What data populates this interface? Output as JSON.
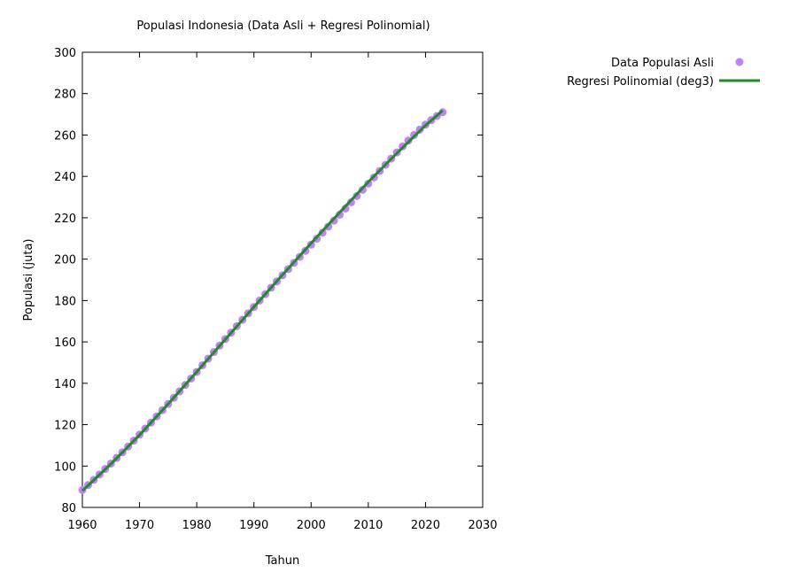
{
  "chart_data": {
    "type": "scatter",
    "title": "Populasi Indonesia (Data Asli + Regresi Polinomial)",
    "xlabel": "Tahun",
    "ylabel": "Populasi (juta)",
    "xlim": [
      1960,
      2030
    ],
    "ylim": [
      80,
      300
    ],
    "xticks": [
      1960,
      1970,
      1980,
      1990,
      2000,
      2010,
      2020,
      2030
    ],
    "yticks": [
      80,
      100,
      120,
      140,
      160,
      180,
      200,
      220,
      240,
      260,
      280,
      300
    ],
    "grid": false,
    "legend_position": "outside-top-right",
    "series": [
      {
        "name": "Data Populasi Asli",
        "kind": "points",
        "color": "#c080ff",
        "x": [
          1960,
          1961,
          1962,
          1963,
          1964,
          1965,
          1966,
          1967,
          1968,
          1969,
          1970,
          1971,
          1972,
          1973,
          1974,
          1975,
          1976,
          1977,
          1978,
          1979,
          1980,
          1981,
          1982,
          1983,
          1984,
          1985,
          1986,
          1987,
          1988,
          1989,
          1990,
          1991,
          1992,
          1993,
          1994,
          1995,
          1996,
          1997,
          1998,
          1999,
          2000,
          2001,
          2002,
          2003,
          2004,
          2005,
          2006,
          2007,
          2008,
          2009,
          2010,
          2011,
          2012,
          2013,
          2014,
          2015,
          2016,
          2017,
          2018,
          2019,
          2020,
          2021,
          2022,
          2023
        ],
        "y": [
          88.4,
          90.8,
          93.3,
          95.9,
          98.6,
          101.2,
          103.9,
          106.6,
          109.4,
          112.3,
          115.2,
          118.1,
          121.0,
          124.0,
          127.0,
          130.0,
          133.0,
          136.1,
          139.2,
          142.3,
          145.5,
          148.7,
          151.9,
          155.1,
          158.2,
          161.4,
          164.5,
          167.6,
          170.7,
          173.8,
          176.9,
          180.0,
          183.1,
          186.2,
          189.2,
          192.2,
          195.2,
          198.2,
          201.1,
          204.0,
          207.0,
          209.9,
          212.8,
          215.7,
          218.6,
          221.5,
          224.5,
          227.5,
          230.5,
          233.5,
          236.5,
          239.5,
          242.6,
          245.6,
          248.6,
          251.6,
          254.5,
          257.3,
          260.0,
          262.6,
          265.0,
          267.2,
          269.2,
          271.0
        ]
      },
      {
        "name": "Regresi Polinomial (deg3)",
        "kind": "line",
        "color": "#228b22",
        "x": [
          1960,
          1965,
          1970,
          1975,
          1980,
          1985,
          1990,
          1995,
          2000,
          2005,
          2010,
          2015,
          2020,
          2023
        ],
        "y": [
          88.0,
          101.0,
          115.0,
          130.0,
          145.5,
          161.2,
          176.9,
          192.4,
          207.7,
          222.6,
          237.3,
          251.2,
          264.6,
          271.8
        ]
      }
    ]
  }
}
